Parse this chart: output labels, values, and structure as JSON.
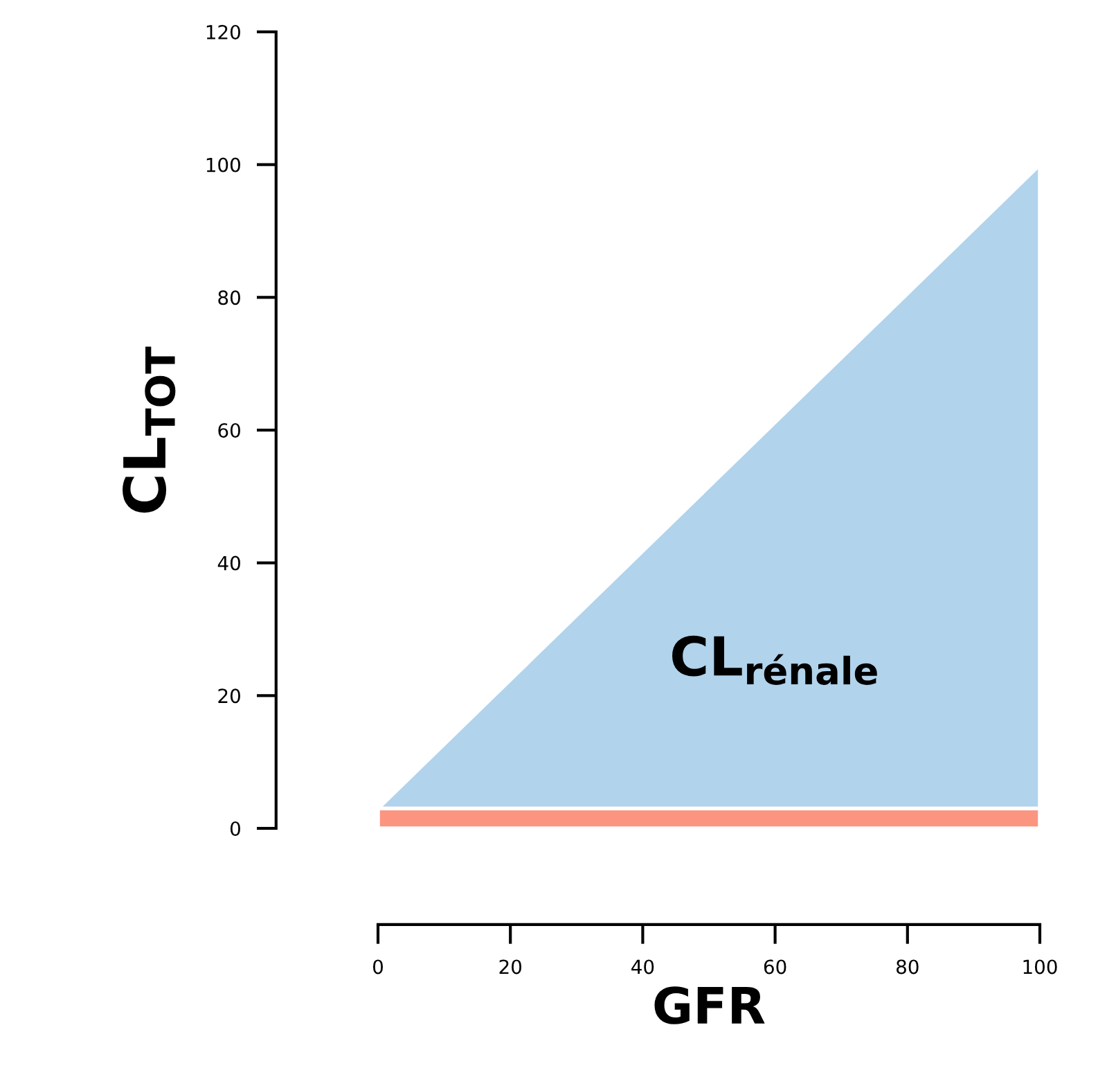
{
  "chart_data": {
    "type": "area",
    "stacked": true,
    "xlabel": "GFR",
    "ylabel": "CL$_{TOT}$",
    "x": [
      0,
      100
    ],
    "series": [
      {
        "color": "#fc9580",
        "values": [
          3,
          3
        ]
      },
      {
        "color": "#b1d3ec",
        "values": [
          0,
          97
        ]
      }
    ],
    "xlim": [
      0,
      100
    ],
    "ylim": [
      0,
      120
    ],
    "xticks": [
      0,
      20,
      40,
      60,
      80,
      100
    ],
    "yticks": [
      0,
      20,
      40,
      60,
      80,
      100,
      120
    ],
    "grid": false,
    "legend": false,
    "annotations": [
      "CL$_{rénale}$"
    ]
  }
}
